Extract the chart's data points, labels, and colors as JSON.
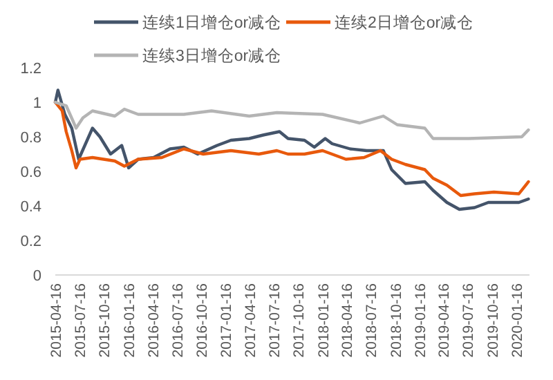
{
  "chart_data": {
    "type": "line",
    "series": [
      {
        "name": "连续1日增仓or减仓",
        "color": "#44546a",
        "x": [
          "2015-04-16",
          "2015-04-26",
          "2015-05-22",
          "2015-06-17",
          "2015-07-13",
          "2015-09-03",
          "2015-10-01",
          "2015-11-10",
          "2015-12-22",
          "2016-01-17",
          "2016-02-22",
          "2016-04-20",
          "2016-06-21",
          "2016-08-12",
          "2016-10-03",
          "2016-12-15",
          "2017-02-05",
          "2017-04-15",
          "2017-06-06",
          "2017-08-07",
          "2017-09-08",
          "2017-11-09",
          "2017-12-16",
          "2018-01-26",
          "2018-02-21",
          "2018-04-30",
          "2018-07-01",
          "2018-09-02",
          "2018-10-03",
          "2018-11-24",
          "2019-02-05",
          "2019-03-08",
          "2019-04-29",
          "2019-06-15",
          "2019-08-11",
          "2019-10-02",
          "2019-12-14",
          "2020-01-25",
          "2020-03-01"
        ],
        "values": [
          1.0,
          1.07,
          0.93,
          0.85,
          0.67,
          0.85,
          0.8,
          0.7,
          0.75,
          0.62,
          0.67,
          0.68,
          0.73,
          0.74,
          0.7,
          0.75,
          0.78,
          0.79,
          0.81,
          0.83,
          0.79,
          0.78,
          0.74,
          0.79,
          0.76,
          0.73,
          0.72,
          0.72,
          0.61,
          0.53,
          0.54,
          0.49,
          0.42,
          0.38,
          0.39,
          0.42,
          0.42,
          0.42,
          0.44
        ]
      },
      {
        "name": "连续2日增仓or减仓",
        "color": "#e8590c",
        "x": [
          "2015-04-16",
          "2015-05-12",
          "2015-05-27",
          "2015-06-17",
          "2015-07-03",
          "2015-07-18",
          "2015-09-03",
          "2015-11-26",
          "2016-01-01",
          "2016-02-22",
          "2016-05-21",
          "2016-08-12",
          "2016-10-24",
          "2017-02-05",
          "2017-05-21",
          "2017-07-28",
          "2017-09-08",
          "2017-11-09",
          "2018-01-16",
          "2018-04-14",
          "2018-06-21",
          "2018-08-22",
          "2018-10-03",
          "2018-11-24",
          "2019-02-05",
          "2019-03-08",
          "2019-04-29",
          "2019-06-20",
          "2019-08-11",
          "2019-10-23",
          "2020-01-25",
          "2020-03-01"
        ],
        "values": [
          1.0,
          0.95,
          0.83,
          0.72,
          0.62,
          0.67,
          0.68,
          0.66,
          0.63,
          0.67,
          0.68,
          0.73,
          0.7,
          0.72,
          0.7,
          0.72,
          0.7,
          0.7,
          0.72,
          0.67,
          0.68,
          0.72,
          0.67,
          0.64,
          0.61,
          0.56,
          0.52,
          0.46,
          0.47,
          0.48,
          0.47,
          0.54
        ]
      },
      {
        "name": "连续3日增仓or减仓",
        "color": "#b4b4b4",
        "x": [
          "2015-04-16",
          "2015-05-27",
          "2015-06-22",
          "2015-07-03",
          "2015-07-29",
          "2015-09-03",
          "2015-11-26",
          "2016-01-01",
          "2016-02-22",
          "2016-08-12",
          "2016-11-24",
          "2017-04-15",
          "2017-07-28",
          "2018-01-16",
          "2018-06-05",
          "2018-09-02",
          "2018-10-24",
          "2019-02-05",
          "2019-03-08",
          "2019-07-20",
          "2020-02-05",
          "2020-03-01"
        ],
        "values": [
          1.0,
          0.98,
          0.89,
          0.85,
          0.91,
          0.95,
          0.92,
          0.96,
          0.93,
          0.93,
          0.95,
          0.92,
          0.94,
          0.93,
          0.88,
          0.92,
          0.87,
          0.85,
          0.79,
          0.79,
          0.8,
          0.84
        ]
      }
    ],
    "xlim": [
      "2015-04-16",
      "2020-03-05"
    ],
    "xticks": [
      {
        "value": "2015-04-16",
        "label": "2015-04-16"
      },
      {
        "value": "2015-07-16",
        "label": "2015-07-16"
      },
      {
        "value": "2015-10-16",
        "label": "2015-10-16"
      },
      {
        "value": "2016-01-16",
        "label": "2016-01-16"
      },
      {
        "value": "2016-04-16",
        "label": "2016-04-16"
      },
      {
        "value": "2016-07-16",
        "label": "2016-07-16"
      },
      {
        "value": "2016-10-16",
        "label": "2016-10-16"
      },
      {
        "value": "2017-01-16",
        "label": "2017-01-16"
      },
      {
        "value": "2017-04-16",
        "label": "2017-04-16"
      },
      {
        "value": "2017-07-16",
        "label": "2017-07-16"
      },
      {
        "value": "2017-10-16",
        "label": "2017-10-16"
      },
      {
        "value": "2018-01-16",
        "label": "2018-01-16"
      },
      {
        "value": "2018-04-16",
        "label": "2018-04-16"
      },
      {
        "value": "2018-07-16",
        "label": "2018-07-16"
      },
      {
        "value": "2018-10-16",
        "label": "2018-10-16"
      },
      {
        "value": "2019-01-16",
        "label": "2019-01-16"
      },
      {
        "value": "2019-04-16",
        "label": "2019-04-16"
      },
      {
        "value": "2019-07-16",
        "label": "2019-07-16"
      },
      {
        "value": "2019-10-16",
        "label": "2019-10-16"
      },
      {
        "value": "2020-01-16",
        "label": "2020-01-16"
      }
    ],
    "ylim": [
      0,
      1.2
    ],
    "yticks": [
      0,
      0.2,
      0.4,
      0.6,
      0.8,
      1,
      1.2
    ],
    "legend": "top",
    "grid": false
  }
}
